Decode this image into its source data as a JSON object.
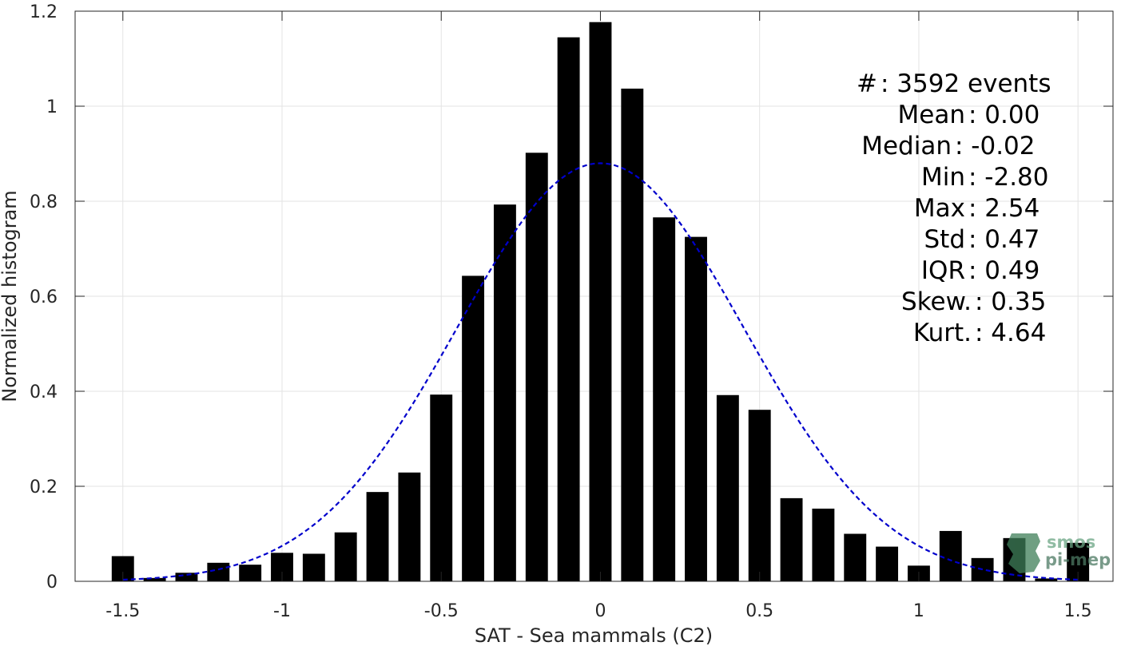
{
  "chart_data": {
    "type": "bar",
    "xlabel": "SAT - Sea mammals (C2)",
    "ylabel": "Normalized histogram",
    "xlim": [
      -1.65,
      1.61
    ],
    "ylim": [
      0,
      1.2
    ],
    "x_ticks": [
      -1.5,
      -1,
      -0.5,
      0,
      0.5,
      1,
      1.5
    ],
    "x_tick_labels": [
      "-1.5",
      "-1",
      "-0.5",
      "0",
      "0.5",
      "1",
      "1.5"
    ],
    "y_ticks": [
      0,
      0.2,
      0.4,
      0.6,
      0.8,
      1,
      1.2
    ],
    "y_tick_labels": [
      "0",
      "0.2",
      "0.4",
      "0.6",
      "0.8",
      "1",
      "1.2"
    ],
    "grid": true,
    "bar_color": "#000000",
    "bin_width": 0.1,
    "bars": {
      "x": [
        -1.5,
        -1.4,
        -1.3,
        -1.2,
        -1.1,
        -1.0,
        -0.9,
        -0.8,
        -0.7,
        -0.6,
        -0.5,
        -0.4,
        -0.3,
        -0.2,
        -0.1,
        0.0,
        0.1,
        0.2,
        0.3,
        0.4,
        0.5,
        0.6,
        0.7,
        0.8,
        0.9,
        1.0,
        1.1,
        1.2,
        1.3,
        1.4,
        1.5
      ],
      "values": [
        0.053,
        0.007,
        0.018,
        0.039,
        0.035,
        0.06,
        0.058,
        0.103,
        0.188,
        0.229,
        0.393,
        0.643,
        0.793,
        0.902,
        1.145,
        1.177,
        1.037,
        0.766,
        0.725,
        0.392,
        0.361,
        0.175,
        0.153,
        0.1,
        0.073,
        0.033,
        0.106,
        0.049,
        0.091,
        0.006,
        0.081
      ]
    },
    "fit_curve": {
      "style": "dashed",
      "color": "#0000cc",
      "mean": 0.0,
      "std": 0.45,
      "peak": 0.88,
      "x_range": [
        -1.5,
        1.5
      ]
    }
  },
  "stats": [
    {
      "label": "#  ",
      "sep": ": ",
      "value": "3592 events"
    },
    {
      "label": "Mean ",
      "sep": ": ",
      "value": "0.00"
    },
    {
      "label": "Median ",
      "sep": ": ",
      "value": "-0.02"
    },
    {
      "label": "Min ",
      "sep": ": ",
      "value": "-2.80"
    },
    {
      "label": "Max ",
      "sep": ": ",
      "value": "2.54"
    },
    {
      "label": "Std ",
      "sep": ": ",
      "value": "0.47"
    },
    {
      "label": "IQR ",
      "sep": ": ",
      "value": "0.49"
    },
    {
      "label": "Skew. ",
      "sep": ": ",
      "value": "0.35"
    },
    {
      "label": "Kurt. ",
      "sep": ": ",
      "value": "4.64"
    }
  ],
  "logo": {
    "line1": "smos",
    "line2": "pi-mep",
    "color": "#5a8f6e"
  }
}
